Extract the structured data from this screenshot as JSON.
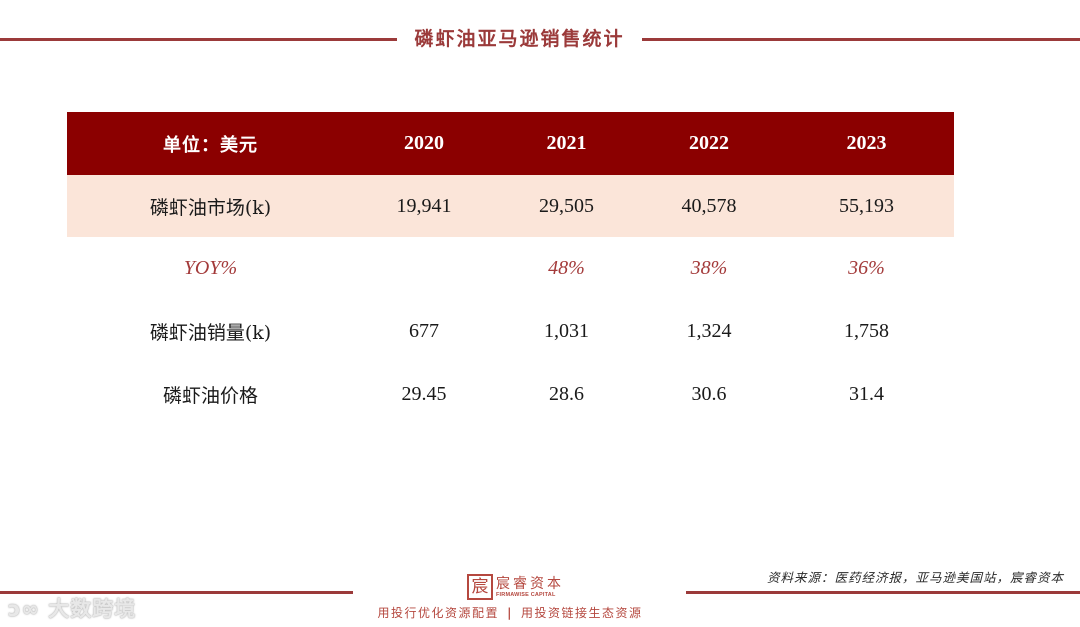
{
  "page": {
    "title": "磷虾油亚马逊销售统计",
    "accent_color": "#9b3a3a",
    "header_bg": "#8b0000",
    "highlight_bg": "#fbe5d9"
  },
  "table": {
    "header": {
      "label": "单位：美元",
      "years": [
        "2020",
        "2021",
        "2022",
        "2023"
      ]
    },
    "rows": [
      {
        "label": "磷虾油市场(k)",
        "values": [
          "19,941",
          "29,505",
          "40,578",
          "55,193"
        ]
      },
      {
        "label": "YOY%",
        "values": [
          "",
          "48%",
          "38%",
          "36%"
        ]
      },
      {
        "label": "磷虾油销量(k)",
        "values": [
          "677",
          "1,031",
          "1,324",
          "1,758"
        ]
      },
      {
        "label": "磷虾油价格",
        "values": [
          "29.45",
          "28.6",
          "30.6",
          "31.4"
        ]
      }
    ]
  },
  "chart_data": {
    "type": "table",
    "title": "磷虾油亚马逊销售统计",
    "unit": "单位：美元",
    "columns": [
      "2020",
      "2021",
      "2022",
      "2023"
    ],
    "series": [
      {
        "name": "磷虾油市场(k)",
        "values": [
          19941,
          29505,
          40578,
          55193
        ]
      },
      {
        "name": "YOY%",
        "values": [
          null,
          48,
          38,
          36
        ]
      },
      {
        "name": "磷虾油销量(k)",
        "values": [
          677,
          1031,
          1324,
          1758
        ]
      },
      {
        "name": "磷虾油价格",
        "values": [
          29.45,
          28.6,
          30.6,
          31.4
        ]
      }
    ]
  },
  "footer": {
    "logo_mark": "宸",
    "logo_cn": "宸睿资本",
    "logo_en": "FIRMAWISE CAPITAL",
    "slogan_left": "用投行优化资源配置",
    "slogan_sep": "|",
    "slogan_right": "用投资链接生态资源",
    "source": "资料来源：医药经济报，亚马逊美国站，宸睿资本",
    "watermark": "大数跨境"
  }
}
